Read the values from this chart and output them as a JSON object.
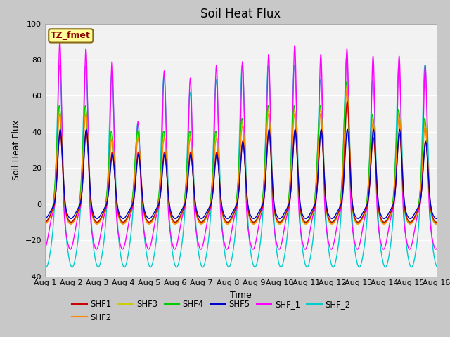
{
  "title": "Soil Heat Flux",
  "ylabel": "Soil Heat Flux",
  "xlabel": "Time",
  "ylim": [
    -40,
    100
  ],
  "yticks": [
    -40,
    -20,
    0,
    20,
    40,
    60,
    80,
    100
  ],
  "xtick_labels": [
    "Aug 1",
    "Aug 2",
    "Aug 3",
    "Aug 4",
    "Aug 5",
    "Aug 6",
    "Aug 7",
    "Aug 8",
    "Aug 9",
    "Aug 10",
    "Aug 11",
    "Aug 12",
    "Aug 13",
    "Aug 14",
    "Aug 15",
    "Aug 16"
  ],
  "colors": {
    "SHF1": "#cc0000",
    "SHF2": "#ff8800",
    "SHF3": "#cccc00",
    "SHF4": "#00cc00",
    "SHF5": "#0000cc",
    "SHF_1": "#ff00ff",
    "SHF_2": "#00cccc"
  },
  "annotation_text": "TZ_fmet",
  "annotation_color": "#8b0000",
  "annotation_bg": "#ffff99",
  "annotation_border": "#8b6914",
  "title_fontsize": 12,
  "axis_fontsize": 9,
  "tick_fontsize": 8,
  "legend_fontsize": 8.5,
  "day_peaks_shf1": [
    41,
    42,
    30,
    30,
    30,
    30,
    30,
    36,
    41,
    42,
    42,
    58,
    38,
    40,
    36
  ],
  "day_peaks_shf2": [
    52,
    52,
    38,
    38,
    38,
    38,
    38,
    45,
    52,
    52,
    52,
    65,
    47,
    50,
    45
  ],
  "day_peaks_shf3": [
    54,
    54,
    40,
    40,
    40,
    40,
    40,
    47,
    54,
    54,
    54,
    67,
    49,
    52,
    47
  ],
  "day_peaks_shf4": [
    56,
    56,
    42,
    42,
    42,
    42,
    42,
    49,
    56,
    56,
    56,
    69,
    51,
    54,
    49
  ],
  "day_peaks_shf5": [
    42,
    42,
    28,
    28,
    28,
    28,
    28,
    35,
    42,
    42,
    42,
    42,
    42,
    42,
    35
  ],
  "day_peaks_shf_1": [
    92,
    88,
    81,
    48,
    76,
    72,
    79,
    81,
    85,
    90,
    85,
    88,
    84,
    84,
    79
  ],
  "day_peaks_shf_2": [
    80,
    80,
    75,
    48,
    74,
    65,
    72,
    80,
    80,
    80,
    72,
    85,
    72,
    80,
    80
  ]
}
